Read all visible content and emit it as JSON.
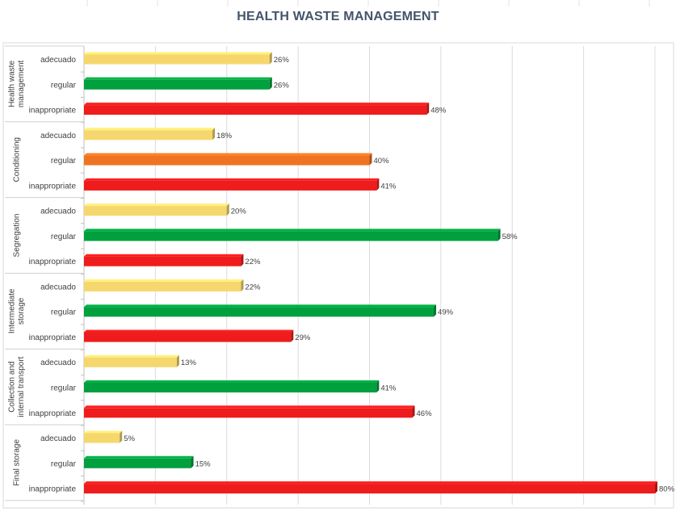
{
  "chart_data": {
    "type": "bar",
    "orientation": "horizontal",
    "title": "HEALTH WASTE MANAGEMENT",
    "xlim": [
      0,
      80
    ],
    "grid": true,
    "legend": "none",
    "groups": [
      {
        "name": "Health waste management",
        "lines": [
          "Health waste",
          "management"
        ],
        "categories": [
          "adecuado",
          "regular",
          "inappropriate"
        ],
        "values": [
          26,
          26,
          48
        ],
        "labels": [
          "26%",
          "26%",
          "48%"
        ],
        "colors": [
          "#f5d76e",
          "#00a03e",
          "#ee1c1c"
        ]
      },
      {
        "name": "Conditioning",
        "lines": [
          "Conditioning"
        ],
        "categories": [
          "adecuado",
          "regular",
          "inappropriate"
        ],
        "values": [
          18,
          40,
          41
        ],
        "labels": [
          "18%",
          "40%",
          "41%"
        ],
        "colors": [
          "#f5d76e",
          "#ee7322",
          "#ee1c1c"
        ]
      },
      {
        "name": "Segregation",
        "lines": [
          "Segregation"
        ],
        "categories": [
          "adecuado",
          "regular",
          "inappropriate"
        ],
        "values": [
          20,
          58,
          22
        ],
        "labels": [
          "20%",
          "58%",
          "22%"
        ],
        "colors": [
          "#f5d76e",
          "#00a03e",
          "#ee1c1c"
        ]
      },
      {
        "name": "Intermediate storage",
        "lines": [
          "Intermediate",
          "storage"
        ],
        "categories": [
          "adecuado",
          "regular",
          "inappropriate"
        ],
        "values": [
          22,
          49,
          29
        ],
        "labels": [
          "22%",
          "49%",
          "29%"
        ],
        "colors": [
          "#f5d76e",
          "#00a03e",
          "#ee1c1c"
        ]
      },
      {
        "name": "Collection and internal transport",
        "lines": [
          "Collection and",
          "internal transport"
        ],
        "categories": [
          "adecuado",
          "regular",
          "inappropriate"
        ],
        "values": [
          13,
          41,
          46
        ],
        "labels": [
          "13%",
          "41%",
          "46%"
        ],
        "colors": [
          "#f5d76e",
          "#00a03e",
          "#ee1c1c"
        ]
      },
      {
        "name": "Final storage",
        "lines": [
          "Final storage"
        ],
        "categories": [
          "adecuado",
          "regular",
          "inappropriate"
        ],
        "values": [
          5,
          15,
          80
        ],
        "labels": [
          "5%",
          "15%",
          "80%"
        ],
        "colors": [
          "#f5d76e",
          "#00a03e",
          "#ee1c1c"
        ]
      }
    ]
  }
}
